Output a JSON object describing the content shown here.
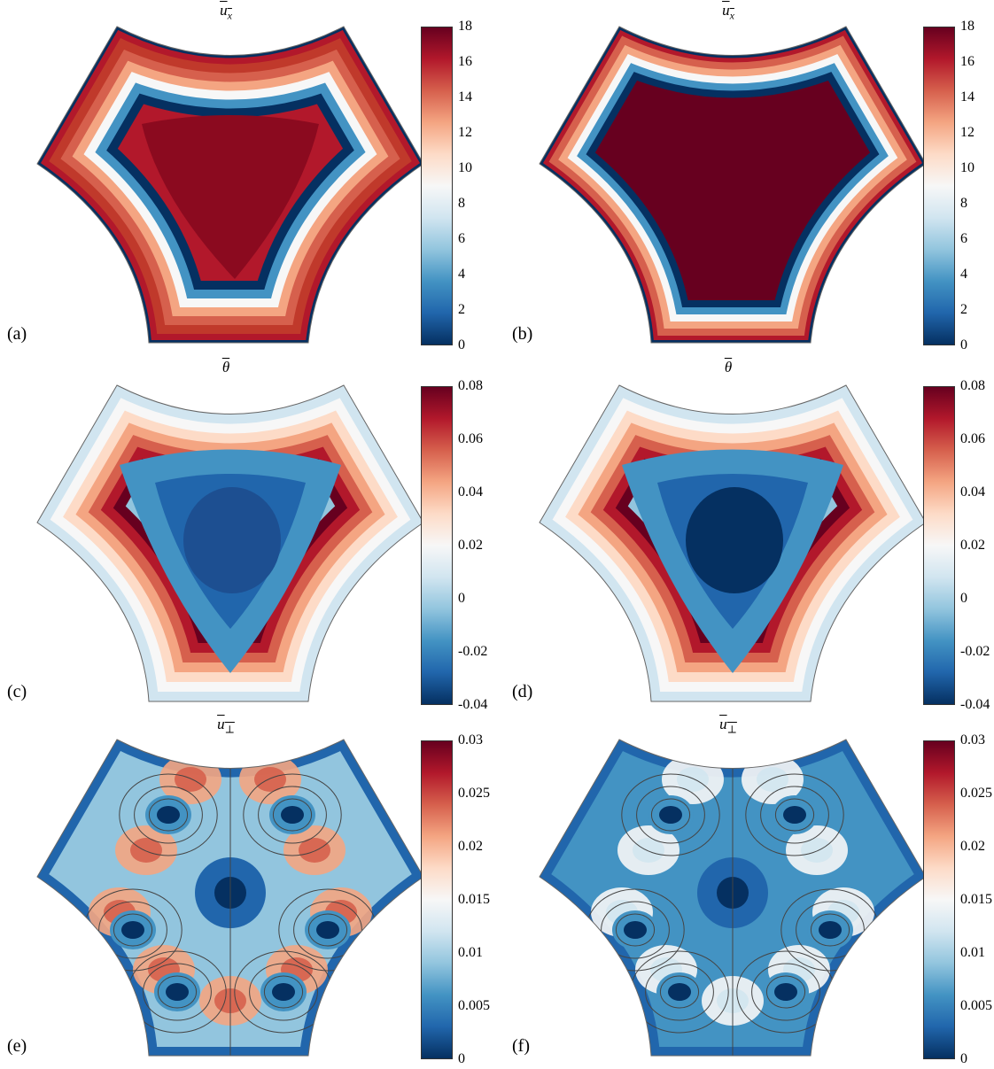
{
  "colormap": [
    "#053061",
    "#2166ac",
    "#4393c3",
    "#92c5de",
    "#d1e5f0",
    "#f7f7f7",
    "#fddbc7",
    "#f4a582",
    "#d6604d",
    "#b2182b",
    "#67001f"
  ],
  "panels": [
    {
      "id": "a",
      "label": "(a)",
      "title_base": "u",
      "title_sub": "x",
      "title_overline": true,
      "ticks": [
        "18",
        "16",
        "14",
        "12",
        "10",
        "8",
        "6",
        "4",
        "2",
        "0"
      ]
    },
    {
      "id": "b",
      "label": "(b)",
      "title_base": "u",
      "title_sub": "x",
      "title_overline": true,
      "ticks": [
        "18",
        "16",
        "14",
        "12",
        "10",
        "8",
        "6",
        "4",
        "2",
        "0"
      ]
    },
    {
      "id": "c",
      "label": "(c)",
      "title_base": "θ",
      "title_sub": "",
      "title_overline": true,
      "ticks": [
        "0.08",
        "0.06",
        "0.04",
        "0.02",
        "0",
        "-0.02",
        "-0.04"
      ]
    },
    {
      "id": "d",
      "label": "(d)",
      "title_base": "θ",
      "title_sub": "",
      "title_overline": true,
      "ticks": [
        "0.08",
        "0.06",
        "0.04",
        "0.02",
        "0",
        "-0.02",
        "-0.04"
      ]
    },
    {
      "id": "e",
      "label": "(e)",
      "title_base": "u",
      "title_sub": "⊥",
      "title_overline": true,
      "ticks": [
        "0.03",
        "0.025",
        "0.02",
        "0.015",
        "0.01",
        "0.005",
        "0"
      ]
    },
    {
      "id": "f",
      "label": "(f)",
      "title_base": "u",
      "title_sub": "⊥",
      "title_overline": true,
      "ticks": [
        "0.03",
        "0.025",
        "0.02",
        "0.015",
        "0.01",
        "0.005",
        "0"
      ]
    }
  ]
}
